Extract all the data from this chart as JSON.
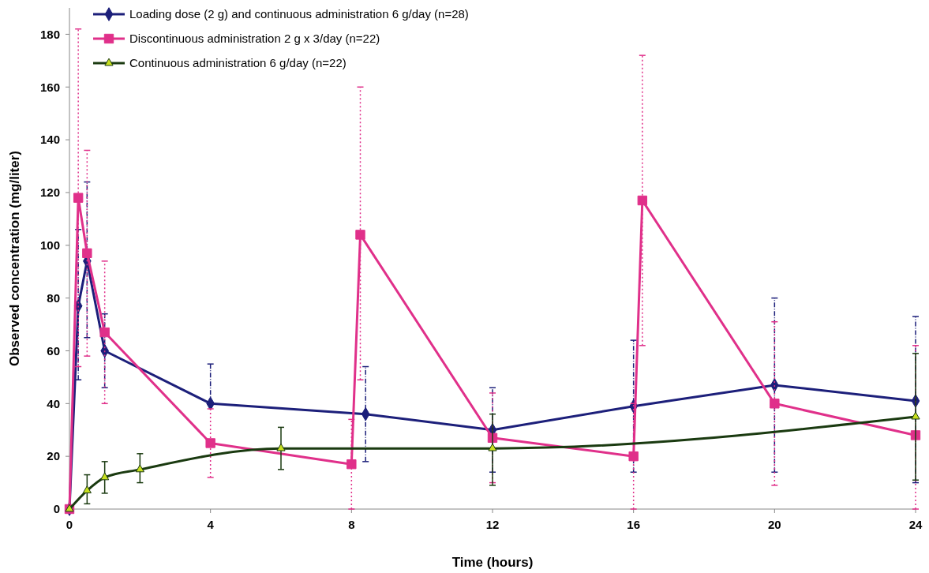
{
  "chart_data": {
    "type": "line",
    "xlabel": "Time (hours)",
    "ylabel": "Observed concentration (mg/liter)",
    "xlim": [
      0,
      24
    ],
    "ylim": [
      0,
      190
    ],
    "xticks": [
      0,
      4,
      8,
      12,
      16,
      20,
      24
    ],
    "yticks": [
      0,
      20,
      40,
      60,
      80,
      100,
      120,
      140,
      160,
      180
    ],
    "grid": false,
    "legend": "top left",
    "line_style": "solid",
    "series": [
      {
        "name": "Loading dose (2 g) and continuous administration 6 g/day (n=28)",
        "color": "#1c1f7a",
        "marker": "diamond",
        "x": [
          0,
          0.25,
          0.5,
          1,
          4,
          8.4,
          12,
          16,
          20,
          24
        ],
        "values": [
          0,
          77,
          94,
          60,
          40,
          36,
          30,
          39,
          47,
          41
        ],
        "errors": [
          null,
          [
            49,
            106
          ],
          [
            65,
            124
          ],
          [
            46,
            74
          ],
          [
            40,
            55
          ],
          [
            18,
            54
          ],
          [
            14,
            46
          ],
          [
            14,
            64
          ],
          [
            14,
            80
          ],
          [
            10,
            73
          ]
        ]
      },
      {
        "name": "Discontinuous administration 2 g x 3/day (n=22)",
        "color": "#e0308a",
        "marker": "square",
        "x": [
          0,
          0.25,
          0.5,
          1,
          4,
          8,
          8.25,
          12,
          16,
          16.25,
          20,
          24
        ],
        "values": [
          0,
          118,
          97,
          67,
          25,
          17,
          104,
          27,
          20,
          117,
          40,
          28
        ],
        "errors": [
          null,
          [
            54,
            182
          ],
          [
            58,
            136
          ],
          [
            40,
            94
          ],
          [
            12,
            38
          ],
          [
            0,
            34
          ],
          [
            49,
            160
          ],
          [
            10,
            44
          ],
          [
            0,
            40
          ],
          [
            62,
            172
          ],
          [
            9,
            71
          ],
          [
            0,
            62
          ]
        ]
      },
      {
        "name": "Continuous administration 6 g/day (n=22)",
        "color": "#1a3a10",
        "marker": "triangle",
        "x": [
          0,
          0.5,
          1,
          2,
          6,
          12,
          24
        ],
        "values": [
          0,
          7,
          12,
          15,
          23,
          23,
          35
        ],
        "errors": [
          null,
          [
            2,
            13
          ],
          [
            6,
            18
          ],
          [
            10,
            21
          ],
          [
            15,
            31
          ],
          [
            9,
            36
          ],
          [
            11,
            59
          ]
        ]
      }
    ]
  }
}
